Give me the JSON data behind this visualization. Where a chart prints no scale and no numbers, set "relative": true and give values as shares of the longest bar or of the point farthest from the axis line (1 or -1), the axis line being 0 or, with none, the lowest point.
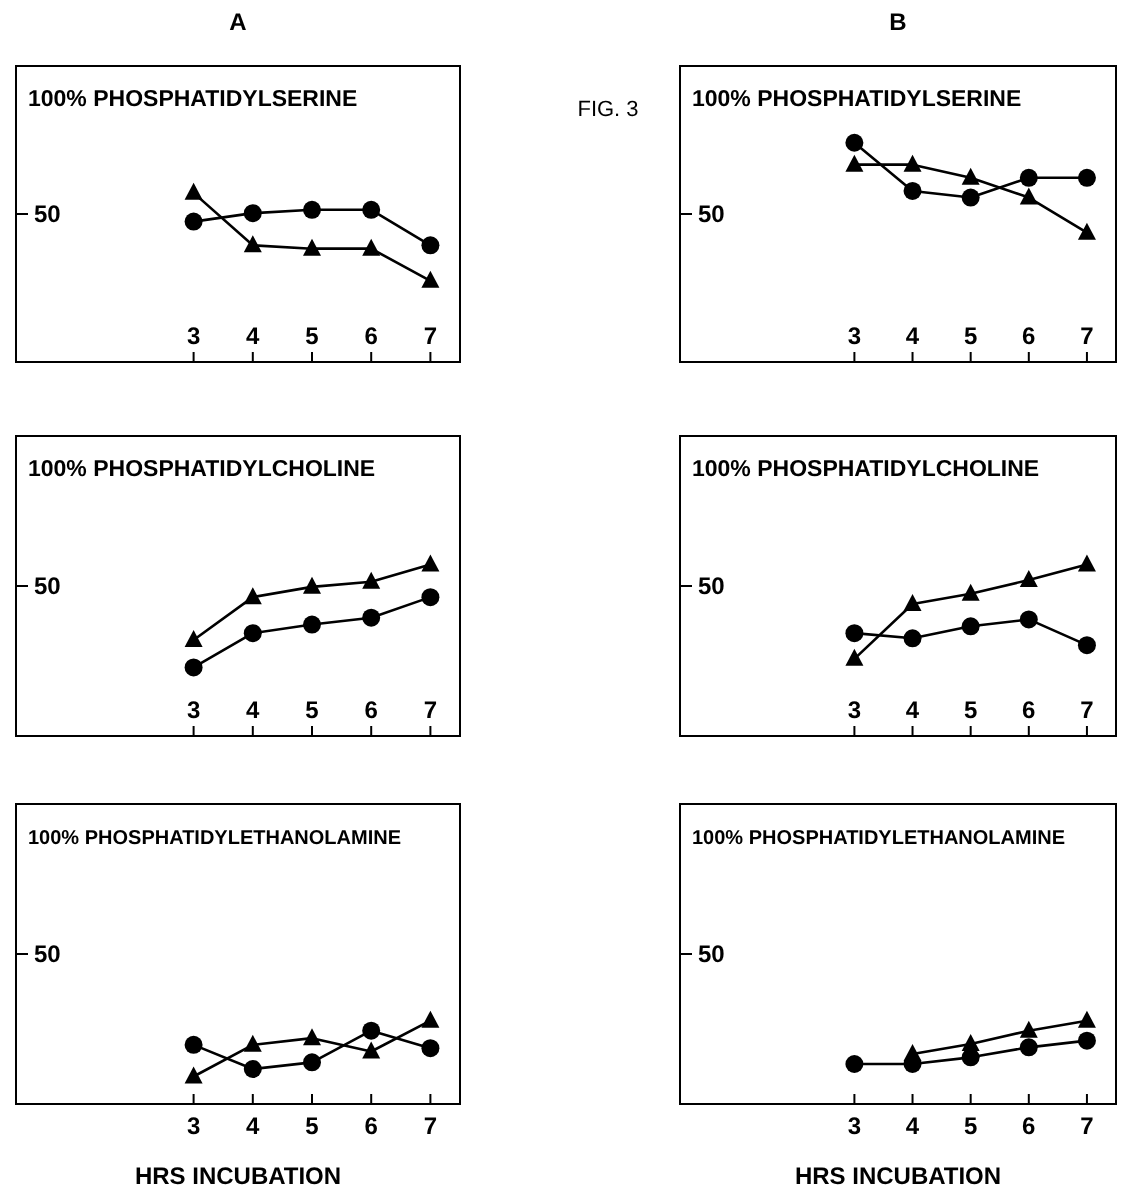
{
  "chart_data": [
    {
      "type": "line",
      "subtitle": "A",
      "title": "100% PHOSPHATIDYLSERINE",
      "relative": true,
      "xlim": [
        0,
        7.5
      ],
      "xticks": [
        3,
        4,
        5,
        6,
        7
      ],
      "x": [
        3,
        4,
        5,
        6,
        7
      ],
      "annotations": [
        "50"
      ],
      "series": [
        {
          "color": "#000000",
          "marker": "circle",
          "values": [
            0.83,
            0.88,
            0.9,
            0.9,
            0.69
          ]
        },
        {
          "color": "#000000",
          "marker": "triangle",
          "values": [
            1,
            0.69,
            0.67,
            0.67,
            0.48
          ]
        }
      ]
    },
    {
      "type": "line",
      "subtitle": "B",
      "title": "100% PHOSPHATIDYLSERINE",
      "relative": true,
      "xlim": [
        0,
        7.5
      ],
      "xticks": [
        3,
        4,
        5,
        6,
        7
      ],
      "x": [
        3,
        4,
        5,
        6,
        7
      ],
      "annotations": [
        "50",
        "FIG. 3"
      ],
      "series": [
        {
          "color": "#000000",
          "marker": "circle",
          "values": [
            1,
            0.78,
            0.75,
            0.84,
            0.84
          ]
        },
        {
          "color": "#000000",
          "marker": "triangle",
          "values": [
            0.9,
            0.9,
            0.84,
            0.75,
            0.59
          ]
        }
      ]
    },
    {
      "type": "line",
      "title": "100% PHOSPHATIDYLCHOLINE",
      "relative": true,
      "xlim": [
        0,
        7.5
      ],
      "xticks": [
        3,
        4,
        5,
        6,
        7
      ],
      "x": [
        3,
        4,
        5,
        6,
        7
      ],
      "annotations": [
        "50"
      ],
      "series": [
        {
          "color": "#000000",
          "marker": "circle",
          "values": [
            0.4,
            0.6,
            0.65,
            0.69,
            0.81
          ]
        },
        {
          "color": "#000000",
          "marker": "triangle",
          "values": [
            0.56,
            0.81,
            0.87,
            0.9,
            1
          ]
        }
      ]
    },
    {
      "type": "line",
      "title": "100% PHOSPHATIDYLCHOLINE",
      "relative": true,
      "xlim": [
        0,
        7.5
      ],
      "xticks": [
        3,
        4,
        5,
        6,
        7
      ],
      "x": [
        3,
        4,
        5,
        6,
        7
      ],
      "annotations": [
        "50"
      ],
      "series": [
        {
          "color": "#000000",
          "marker": "circle",
          "values": [
            0.6,
            0.57,
            0.64,
            0.68,
            0.53
          ]
        },
        {
          "color": "#000000",
          "marker": "triangle",
          "values": [
            0.45,
            0.77,
            0.83,
            0.91,
            1
          ]
        }
      ]
    },
    {
      "type": "line",
      "title": "100% PHOSPHATIDYLETHANOLAMINE",
      "xlabel": "HRS INCUBATION",
      "relative": true,
      "xlim": [
        0,
        7.5
      ],
      "xticks": [
        3,
        4,
        5,
        6,
        7
      ],
      "x": [
        3,
        4,
        5,
        6,
        7
      ],
      "annotations": [
        "50"
      ],
      "series": [
        {
          "color": "#000000",
          "marker": "circle",
          "values": [
            0.71,
            0.42,
            0.5,
            0.88,
            0.67
          ]
        },
        {
          "color": "#000000",
          "marker": "triangle",
          "values": [
            0.33,
            0.71,
            0.79,
            0.63,
            1
          ]
        }
      ]
    },
    {
      "type": "line",
      "title": "100% PHOSPHATIDYLETHANOLAMINE",
      "xlabel": "HRS INCUBATION",
      "relative": true,
      "xlim": [
        0,
        7.5
      ],
      "xticks": [
        3,
        4,
        5,
        6,
        7
      ],
      "x": [
        3,
        4,
        5,
        6,
        7
      ],
      "annotations": [
        "50"
      ],
      "series": [
        {
          "color": "#000000",
          "marker": "circle",
          "values": [
            0.48,
            0.48,
            0.56,
            0.68,
            0.76
          ]
        },
        {
          "color": "#000000",
          "marker": "triangle",
          "values": [
            null,
            0.6,
            0.72,
            0.88,
            1
          ]
        }
      ]
    }
  ]
}
